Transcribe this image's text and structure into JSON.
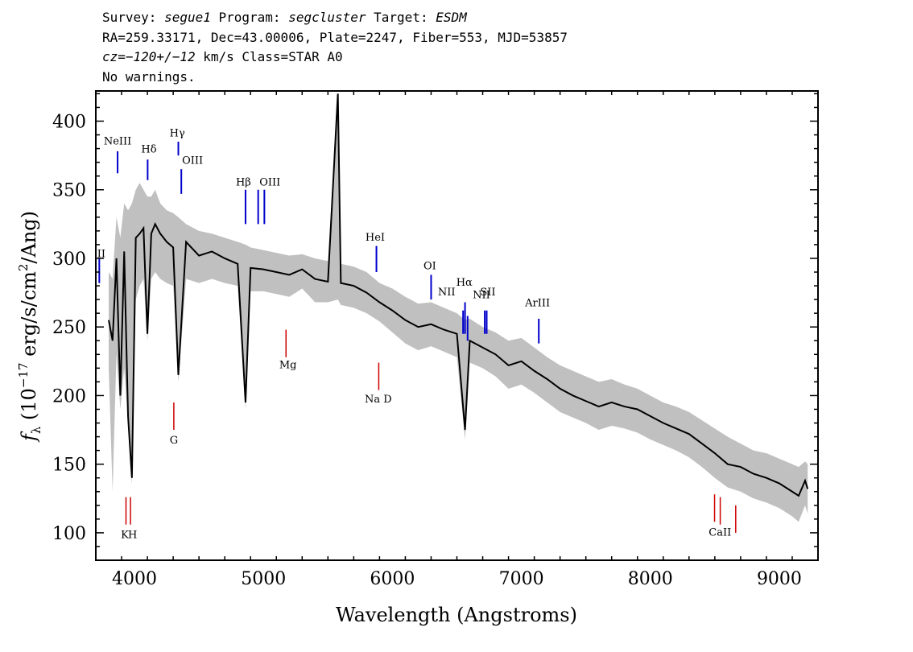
{
  "header": {
    "survey_label": "Survey: ",
    "survey": "segue1",
    "program_label": " Program: ",
    "program": "segcluster",
    "target_label": " Target: ",
    "target": "ESDM",
    "line2": "RA=259.33171, Dec=43.00006, Plate=2247, Fiber=553, MJD=53857",
    "cz_label": "cz",
    "cz_value": "=−120+/−12",
    "cz_rest": " km/s Class=STAR A0",
    "line4": "No warnings."
  },
  "colors": {
    "spectrum": "#000000",
    "error_band": "#c0c0c0",
    "emission_marker": "#0000cc",
    "absorption_marker": "#cc0000"
  },
  "chart_data": {
    "type": "line",
    "title": "",
    "xlabel": "Wavelength (Angstroms)",
    "ylabel_prefix": "f",
    "ylabel_sub": "λ",
    "ylabel_paren_open": " (10",
    "ylabel_exp": "−17",
    "ylabel_mid": " erg/s/cm",
    "ylabel_sq": "2",
    "ylabel_tail": "/Ang)",
    "xlim": [
      3700,
      9300
    ],
    "ylim": [
      80,
      422
    ],
    "xticks": [
      4000,
      5000,
      6000,
      7000,
      8000,
      9000
    ],
    "xtick_labels": [
      "4000",
      "5000",
      "6000",
      "7000",
      "8000",
      "9000"
    ],
    "yticks": [
      100,
      150,
      200,
      250,
      300,
      350,
      400
    ],
    "ytick_labels": [
      "100",
      "150",
      "200",
      "250",
      "300",
      "350",
      "400"
    ],
    "grid": false,
    "series": [
      {
        "x": [
          3800,
          3830,
          3860,
          3890,
          3920,
          3950,
          3980,
          4010,
          4040,
          4070,
          4100,
          4130,
          4160,
          4200,
          4250,
          4300,
          4340,
          4400,
          4500,
          4600,
          4700,
          4800,
          4861,
          4900,
          5000,
          5100,
          5200,
          5300,
          5400,
          5500,
          5577,
          5600,
          5700,
          5800,
          5900,
          6000,
          6100,
          6200,
          6300,
          6400,
          6500,
          6563,
          6600,
          6700,
          6800,
          6900,
          7000,
          7100,
          7200,
          7300,
          7400,
          7500,
          7600,
          7700,
          7800,
          7900,
          8000,
          8100,
          8200,
          8300,
          8400,
          8500,
          8600,
          8700,
          8800,
          8900,
          9000,
          9100,
          9150,
          9200,
          9220
        ],
        "values": [
          255,
          240,
          300,
          200,
          305,
          185,
          140,
          315,
          318,
          322,
          245,
          318,
          325,
          318,
          312,
          308,
          215,
          312,
          302,
          305,
          300,
          296,
          195,
          293,
          292,
          290,
          288,
          292,
          285,
          283,
          420,
          282,
          280,
          275,
          268,
          262,
          255,
          250,
          252,
          248,
          245,
          175,
          240,
          235,
          230,
          222,
          225,
          218,
          212,
          205,
          200,
          196,
          192,
          195,
          192,
          190,
          185,
          180,
          176,
          172,
          165,
          158,
          150,
          148,
          143,
          140,
          136,
          130,
          127,
          138,
          132
        ],
        "err_upper": [
          290,
          285,
          330,
          315,
          340,
          335,
          340,
          350,
          355,
          350,
          345,
          345,
          350,
          340,
          335,
          333,
          330,
          325,
          320,
          318,
          315,
          312,
          310,
          308,
          306,
          304,
          302,
          303,
          300,
          298,
          420,
          296,
          294,
          290,
          282,
          278,
          272,
          267,
          268,
          264,
          260,
          255,
          256,
          250,
          246,
          240,
          242,
          235,
          228,
          222,
          218,
          214,
          210,
          212,
          208,
          205,
          200,
          195,
          192,
          188,
          182,
          176,
          170,
          165,
          160,
          158,
          154,
          150,
          148,
          152,
          150
        ],
        "err_lower": [
          220,
          130,
          230,
          190,
          220,
          180,
          135,
          270,
          280,
          285,
          240,
          285,
          290,
          285,
          282,
          280,
          210,
          285,
          282,
          285,
          282,
          280,
          190,
          276,
          276,
          274,
          272,
          278,
          268,
          268,
          270,
          266,
          264,
          260,
          254,
          246,
          238,
          233,
          236,
          232,
          228,
          168,
          224,
          220,
          214,
          205,
          208,
          202,
          195,
          188,
          184,
          180,
          175,
          178,
          176,
          173,
          168,
          164,
          160,
          155,
          148,
          140,
          133,
          130,
          125,
          122,
          118,
          112,
          108,
          120,
          114
        ]
      }
    ],
    "emission_lines": [
      {
        "label": "OII",
        "x": 3727,
        "y0": 282,
        "y1": 300
      },
      {
        "label": "NeIII",
        "x": 3869,
        "y0": 362,
        "y1": 378
      },
      {
        "label": "Hδ",
        "x": 4102,
        "y0": 357,
        "y1": 372
      },
      {
        "label": "Hγ",
        "x": 4340,
        "y0": 375,
        "y1": 385
      },
      {
        "label": "OIII",
        "x": 4363,
        "y0": 347,
        "y1": 365
      },
      {
        "label": "Hβ",
        "x": 4861,
        "y0": 325,
        "y1": 350
      },
      {
        "label": "OIII",
        "x": 4959,
        "y0": 325,
        "y1": 350
      },
      {
        "label": "OIII",
        "x": 5007,
        "y0": 325,
        "y1": 350
      },
      {
        "label": "HeI",
        "x": 5876,
        "y0": 290,
        "y1": 309
      },
      {
        "label": "OI",
        "x": 6300,
        "y0": 270,
        "y1": 288
      },
      {
        "label": "NII",
        "x": 6548,
        "y0": 245,
        "y1": 262
      },
      {
        "label": "Hα",
        "x": 6563,
        "y0": 245,
        "y1": 268
      },
      {
        "label": "NII",
        "x": 6583,
        "y0": 240,
        "y1": 258
      },
      {
        "label": "SII",
        "x": 6716,
        "y0": 245,
        "y1": 262
      },
      {
        "label": "SII",
        "x": 6731,
        "y0": 245,
        "y1": 262
      },
      {
        "label": "ArIII",
        "x": 7135,
        "y0": 238,
        "y1": 256
      }
    ],
    "emission_labels": [
      {
        "text": "OII",
        "x": 3710,
        "y": 301
      },
      {
        "text": "NeIII",
        "x": 3869,
        "y": 383
      },
      {
        "text": "Hδ",
        "x": 4112,
        "y": 377
      },
      {
        "text": "Hγ",
        "x": 4332,
        "y": 389
      },
      {
        "text": "OIII",
        "x": 4450,
        "y": 369
      },
      {
        "text": "Hβ",
        "x": 4845,
        "y": 353
      },
      {
        "text": "OIII",
        "x": 5050,
        "y": 353
      },
      {
        "text": "HeI",
        "x": 5866,
        "y": 313
      },
      {
        "text": "OI",
        "x": 6290,
        "y": 292
      },
      {
        "text": "NII",
        "x": 6420,
        "y": 273
      },
      {
        "text": "Hα",
        "x": 6558,
        "y": 280
      },
      {
        "text": "NII",
        "x": 6690,
        "y": 271
      },
      {
        "text": "SII",
        "x": 6740,
        "y": 273
      },
      {
        "text": "ArIII",
        "x": 7125,
        "y": 265
      }
    ],
    "absorption_lines": [
      {
        "label": "K",
        "x": 3934,
        "y0": 106,
        "y1": 126
      },
      {
        "label": "H",
        "x": 3969,
        "y0": 106,
        "y1": 126
      },
      {
        "label": "G",
        "x": 4305,
        "y0": 175,
        "y1": 195
      },
      {
        "label": "Mg",
        "x": 5175,
        "y0": 228,
        "y1": 248
      },
      {
        "label": "Na D",
        "x": 5894,
        "y0": 204,
        "y1": 224
      },
      {
        "label": "CaII",
        "x": 8498,
        "y0": 108,
        "y1": 128
      },
      {
        "label": "CaII",
        "x": 8542,
        "y0": 106,
        "y1": 126
      },
      {
        "label": "CaII",
        "x": 8662,
        "y0": 100,
        "y1": 120
      }
    ],
    "absorption_labels": [
      {
        "text": "K",
        "x": 3925,
        "y": 96
      },
      {
        "text": "H",
        "x": 3985,
        "y": 96
      },
      {
        "text": "G",
        "x": 4305,
        "y": 165
      },
      {
        "text": "Mg",
        "x": 5190,
        "y": 220
      },
      {
        "text": "Na D",
        "x": 5890,
        "y": 195
      },
      {
        "text": "CaII",
        "x": 8540,
        "y": 98
      }
    ]
  }
}
